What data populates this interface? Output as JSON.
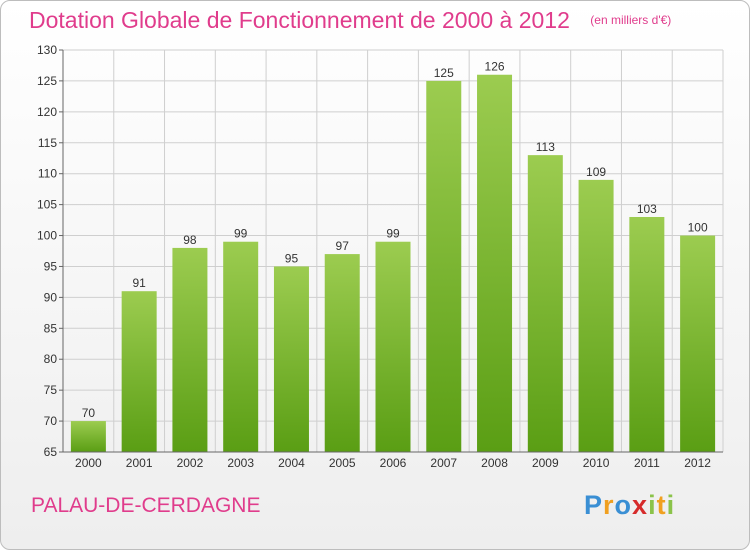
{
  "header": {
    "title": "Dotation Globale de Fonctionnement de 2000 à 2012",
    "unit": "(en milliers d'€)"
  },
  "footer": {
    "commune": "PALAU-DE-CERDAGNE",
    "logo": "Proxiti"
  },
  "colors": {
    "bar_light": "#9ccc50",
    "bar_dark": "#5a9e14",
    "title": "#e03c8c",
    "grid": "#cfcfcf",
    "axis_text": "#333333"
  },
  "chart_data": {
    "type": "bar",
    "title": "Dotation Globale de Fonctionnement de 2000 à 2012",
    "subtitle": "(en milliers d'€)",
    "xlabel": "",
    "ylabel": "",
    "categories": [
      "2000",
      "2001",
      "2002",
      "2003",
      "2004",
      "2005",
      "2006",
      "2007",
      "2008",
      "2009",
      "2010",
      "2011",
      "2012"
    ],
    "values": [
      70,
      91,
      98,
      99,
      95,
      97,
      99,
      125,
      126,
      113,
      109,
      103,
      100
    ],
    "ylim": [
      65,
      130
    ],
    "yticks": [
      65,
      70,
      75,
      80,
      85,
      90,
      95,
      100,
      105,
      110,
      115,
      120,
      125,
      130
    ],
    "grid": true,
    "legend": "none"
  }
}
